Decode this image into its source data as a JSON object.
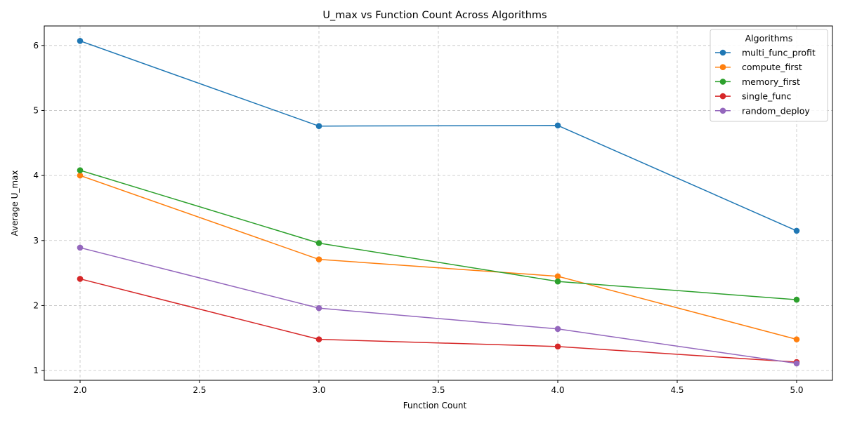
{
  "chart_data": {
    "type": "line",
    "title": "U_max vs Function Count Across Algorithms",
    "xlabel": "Function Count",
    "ylabel": "Average U_max",
    "x": [
      2.0,
      3.0,
      4.0,
      5.0
    ],
    "xlim": [
      1.85,
      5.15
    ],
    "ylim": [
      0.85,
      6.3
    ],
    "xticks": [
      2.0,
      2.5,
      3.0,
      3.5,
      4.0,
      4.5,
      5.0
    ],
    "xtick_labels": [
      "2.0",
      "2.5",
      "3.0",
      "3.5",
      "4.0",
      "4.5",
      "5.0"
    ],
    "yticks": [
      1,
      2,
      3,
      4,
      5,
      6
    ],
    "ytick_labels": [
      "1",
      "2",
      "3",
      "4",
      "5",
      "6"
    ],
    "grid": true,
    "legend": {
      "title": "Algorithms",
      "placement": "top-right"
    },
    "series": [
      {
        "name": "multi_func_profit",
        "color": "#1f77b4",
        "values": [
          6.07,
          4.76,
          4.77,
          3.15
        ]
      },
      {
        "name": "compute_first",
        "color": "#ff7f0e",
        "values": [
          4.0,
          2.71,
          2.45,
          1.48
        ]
      },
      {
        "name": "memory_first",
        "color": "#2ca02c",
        "values": [
          4.08,
          2.96,
          2.37,
          2.09
        ]
      },
      {
        "name": "single_func",
        "color": "#d62728",
        "values": [
          2.41,
          1.48,
          1.37,
          1.13
        ]
      },
      {
        "name": "random_deploy",
        "color": "#9467bd",
        "values": [
          2.89,
          1.96,
          1.64,
          1.11
        ]
      }
    ]
  }
}
